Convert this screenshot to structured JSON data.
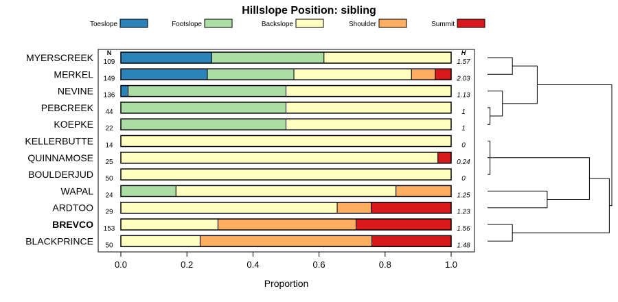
{
  "chart_data": {
    "type": "stacked-bar",
    "title": "Hillslope Position: sibling",
    "xlabel": "Proportion",
    "xlim": [
      0,
      1
    ],
    "x_ticks": [
      "0.0",
      "0.2",
      "0.4",
      "0.6",
      "0.8",
      "1.0"
    ],
    "n_header": "N",
    "h_header": "H",
    "legend": [
      {
        "name": "Toeslope",
        "color": "#2b83ba"
      },
      {
        "name": "Footslope",
        "color": "#abdda4"
      },
      {
        "name": "Backslope",
        "color": "#ffffbf"
      },
      {
        "name": "Shoulder",
        "color": "#fdae61"
      },
      {
        "name": "Summit",
        "color": "#d7191c"
      }
    ],
    "rows": [
      {
        "label": "MYERSCREEK",
        "n": "109",
        "h": "1.57",
        "bold": false,
        "values": [
          0.275,
          0.34,
          0.385,
          0.0,
          0.0
        ]
      },
      {
        "label": "MERKEL",
        "n": "149",
        "h": "2.03",
        "bold": false,
        "values": [
          0.262,
          0.262,
          0.356,
          0.072,
          0.048
        ]
      },
      {
        "label": "NEVINE",
        "n": "136",
        "h": "1.13",
        "bold": false,
        "values": [
          0.022,
          0.478,
          0.5,
          0.0,
          0.0
        ]
      },
      {
        "label": "PEBCREEK",
        "n": "44",
        "h": "1",
        "bold": false,
        "values": [
          0.0,
          0.5,
          0.5,
          0.0,
          0.0
        ]
      },
      {
        "label": "KOEPKE",
        "n": "22",
        "h": "1",
        "bold": false,
        "values": [
          0.0,
          0.5,
          0.5,
          0.0,
          0.0
        ]
      },
      {
        "label": "KELLERBUTTE",
        "n": "14",
        "h": "0",
        "bold": false,
        "values": [
          0.0,
          0.0,
          1.0,
          0.0,
          0.0
        ]
      },
      {
        "label": "QUINNAMOSE",
        "n": "25",
        "h": "0.24",
        "bold": false,
        "values": [
          0.0,
          0.0,
          0.96,
          0.0,
          0.04
        ]
      },
      {
        "label": "BOULDERJUD",
        "n": "50",
        "h": "0",
        "bold": false,
        "values": [
          0.0,
          0.0,
          1.0,
          0.0,
          0.0
        ]
      },
      {
        "label": "WAPAL",
        "n": "24",
        "h": "1.25",
        "bold": false,
        "values": [
          0.0,
          0.167,
          0.666,
          0.167,
          0.0
        ]
      },
      {
        "label": "ARDTOO",
        "n": "29",
        "h": "1.23",
        "bold": false,
        "values": [
          0.0,
          0.0,
          0.655,
          0.103,
          0.242
        ]
      },
      {
        "label": "BREVCO",
        "n": "153",
        "h": "1.56",
        "bold": true,
        "values": [
          0.0,
          0.0,
          0.294,
          0.418,
          0.288
        ]
      },
      {
        "label": "BLACKPRINCE",
        "n": "50",
        "h": "1.48",
        "bold": false,
        "values": [
          0.0,
          0.0,
          0.24,
          0.52,
          0.24
        ]
      }
    ],
    "dendrogram": {
      "merges": [
        {
          "a": "leaf:3",
          "b": "leaf:4",
          "height": 0.02
        },
        {
          "a": "leaf:5",
          "b": "leaf:7",
          "height": 0.02
        },
        {
          "a": "node:1",
          "b": "leaf:6",
          "height": 0.04
        },
        {
          "a": "leaf:2",
          "b": "node:0",
          "height": 0.12
        },
        {
          "a": "leaf:0",
          "b": "leaf:1",
          "height": 0.2
        },
        {
          "a": "node:4",
          "b": "node:3",
          "height": 0.4
        },
        {
          "a": "leaf:10",
          "b": "leaf:11",
          "height": 0.2
        },
        {
          "a": "leaf:8",
          "b": "leaf:9",
          "height": 0.48
        },
        {
          "a": "node:2",
          "b": "node:7",
          "height": 0.82
        },
        {
          "a": "node:8",
          "b": "node:6",
          "height": 0.98
        },
        {
          "a": "node:5",
          "b": "node:9",
          "height": 1.0
        }
      ]
    }
  }
}
